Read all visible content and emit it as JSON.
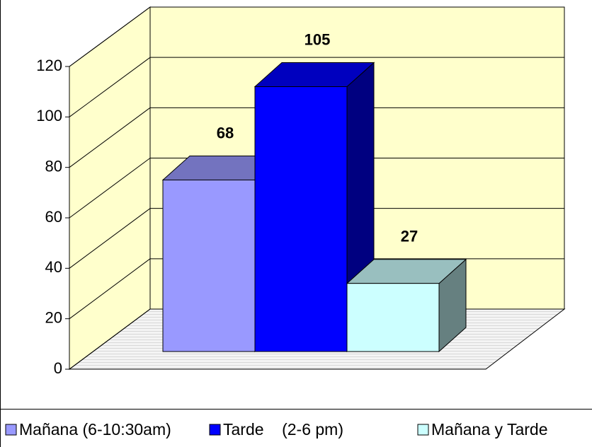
{
  "chart_data": {
    "type": "bar3d",
    "series": [
      {
        "name": "Mañana (6-10:30am)",
        "color": "#9999ff",
        "values": [
          68
        ]
      },
      {
        "name": "Tarde    (2-6 pm)",
        "color": "#0000ff",
        "values": [
          105
        ]
      },
      {
        "name": "Mañana y Tarde",
        "color": "#ccffff",
        "values": [
          27
        ]
      }
    ],
    "ylim": [
      0,
      120
    ],
    "yticks": [
      0,
      20,
      40,
      60,
      80,
      100,
      120
    ],
    "grid": true,
    "legend": "bottom"
  }
}
